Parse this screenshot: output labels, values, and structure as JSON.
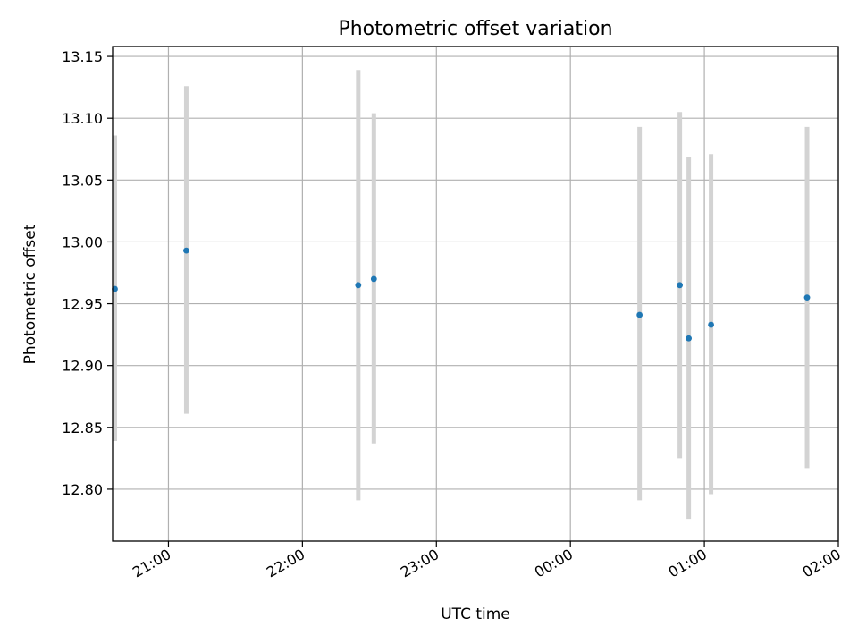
{
  "chart_data": {
    "type": "scatter",
    "title": "Photometric offset variation",
    "xlabel": "UTC time",
    "ylabel": "Photometric offset",
    "x_axis": {
      "kind": "time",
      "range": [
        "20:35",
        "02:00"
      ],
      "ticks": [
        "21:00",
        "22:00",
        "23:00",
        "00:00",
        "01:00",
        "02:00"
      ]
    },
    "y_axis": {
      "range": [
        12.758,
        13.158
      ],
      "ticks": [
        "12.80",
        "12.85",
        "12.90",
        "12.95",
        "13.00",
        "13.05",
        "13.10",
        "13.15"
      ],
      "tick_values": [
        12.8,
        12.85,
        12.9,
        12.95,
        13.0,
        13.05,
        13.1,
        13.15
      ]
    },
    "grid": true,
    "series": [
      {
        "point_color": "#1f77b4",
        "errorbar_color": "#d3d3d3",
        "points": [
          {
            "x": "20:36",
            "y": 12.962,
            "err_low": 12.839,
            "err_high": 13.086
          },
          {
            "x": "21:08",
            "y": 12.993,
            "err_low": 12.861,
            "err_high": 13.126
          },
          {
            "x": "22:25",
            "y": 12.965,
            "err_low": 12.791,
            "err_high": 13.139
          },
          {
            "x": "22:32",
            "y": 12.97,
            "err_low": 12.837,
            "err_high": 13.104
          },
          {
            "x": "00:31",
            "y": 12.941,
            "err_low": 12.791,
            "err_high": 13.093
          },
          {
            "x": "00:49",
            "y": 12.965,
            "err_low": 12.825,
            "err_high": 13.105
          },
          {
            "x": "00:53",
            "y": 12.922,
            "err_low": 12.776,
            "err_high": 13.069
          },
          {
            "x": "01:03",
            "y": 12.933,
            "err_low": 12.796,
            "err_high": 13.071
          },
          {
            "x": "01:46",
            "y": 12.955,
            "err_low": 12.817,
            "err_high": 13.093
          }
        ]
      }
    ]
  }
}
